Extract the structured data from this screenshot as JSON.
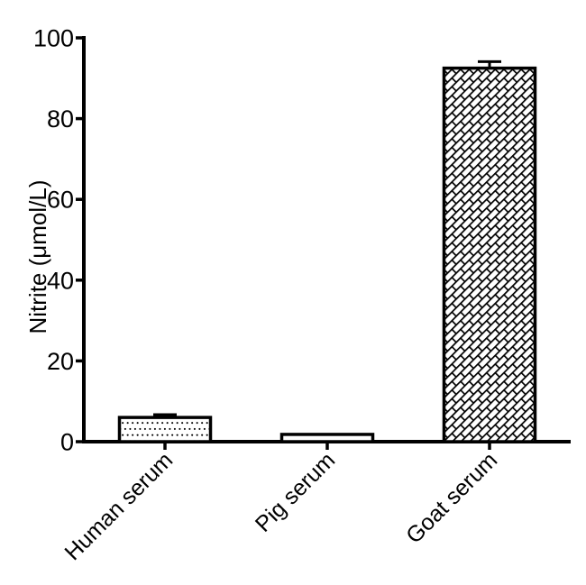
{
  "chart_data": {
    "type": "bar",
    "title": "",
    "xlabel": "",
    "ylabel": "Nitrite (μmol/L)",
    "ylim": [
      0,
      100
    ],
    "yticks": [
      0,
      20,
      40,
      60,
      80,
      100
    ],
    "ytick_labels": [
      "0",
      "20",
      "40",
      "60",
      "80",
      "100"
    ],
    "categories": [
      "Human serum",
      "Pig serum",
      "Goat serum"
    ],
    "series": [
      {
        "name": "Nitrite",
        "values": [
          6,
          1.8,
          92.5
        ],
        "errors_plus": [
          0.7,
          0,
          1.6
        ]
      }
    ],
    "bar_patterns": [
      "dots",
      "plain",
      "bricks"
    ],
    "x_label_rotation_deg": 45,
    "grid": false,
    "legend": null,
    "colors": {
      "stroke": "#000000",
      "fill": "#ffffff",
      "text": "#000000",
      "background": "#ffffff"
    }
  }
}
